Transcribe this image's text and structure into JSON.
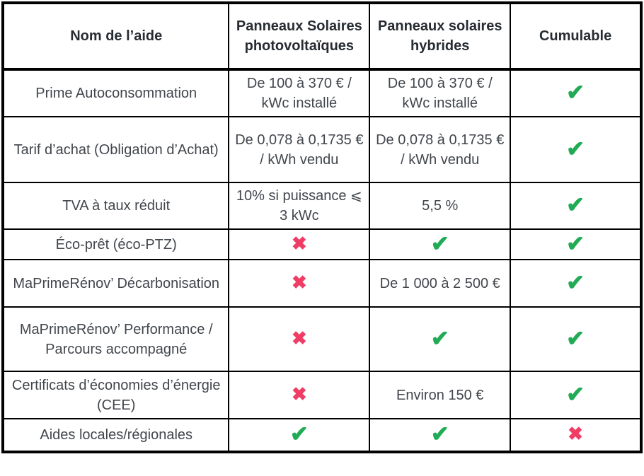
{
  "colors": {
    "check": "#21ab55",
    "cross": "#ef3d66",
    "header_text": "#272c33",
    "body_text": "#41464c",
    "border": "#000000",
    "background": "#ffffff"
  },
  "icons": {
    "check": "✔",
    "cross": "✖"
  },
  "table": {
    "columns": [
      {
        "id": "aide",
        "label": "Nom de l’aide"
      },
      {
        "id": "photovoltaique",
        "label": "Panneaux Solaires photovoltaïques"
      },
      {
        "id": "hybride",
        "label": "Panneaux solaires hybrides"
      },
      {
        "id": "cumulable",
        "label": "Cumulable"
      }
    ],
    "rows": [
      {
        "aide": "Prime Autoconsommation",
        "photovoltaique": "De 100 à 370 € / kWc installé",
        "hybride": "De 100 à 370 € / kWc installé",
        "cumulable": "check"
      },
      {
        "aide": "Tarif d’achat (Obligation d’Achat)",
        "photovoltaique": "De 0,078 à 0,1735 € / kWh vendu",
        "hybride": "De 0,078 à 0,1735 € / kWh vendu",
        "cumulable": "check"
      },
      {
        "aide": "TVA à taux réduit",
        "photovoltaique": "10% si puissance ⩽ 3 kWc",
        "hybride": "5,5 %",
        "cumulable": "check"
      },
      {
        "aide": "Éco-prêt (éco-PTZ)",
        "photovoltaique": "cross",
        "hybride": "check",
        "cumulable": "check"
      },
      {
        "aide": "MaPrimeRénov’ Décarbonisation",
        "photovoltaique": "cross",
        "hybride": "De 1 000 à 2 500 €",
        "cumulable": "check"
      },
      {
        "aide": "MaPrimeRénov’ Performance / Parcours accompagné",
        "photovoltaique": "cross",
        "hybride": "check",
        "cumulable": "check"
      },
      {
        "aide": "Certificats d’économies d’énergie (CEE)",
        "photovoltaique": "cross",
        "hybride": "Environ 150 €",
        "cumulable": "check"
      },
      {
        "aide": "Aides locales/régionales",
        "photovoltaique": "check",
        "hybride": "check",
        "cumulable": "cross"
      }
    ]
  }
}
